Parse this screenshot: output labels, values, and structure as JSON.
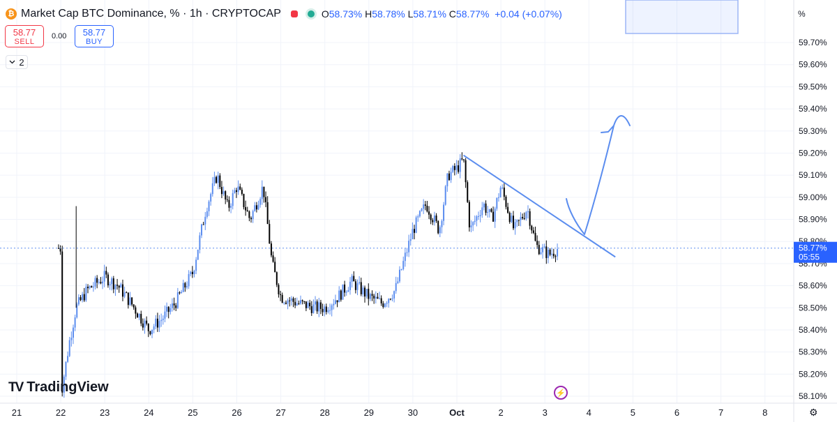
{
  "header": {
    "coin_icon": "bitcoin-icon",
    "symbol_title": "Market Cap BTC Dominance, % · 1h · CRYPTOCAP",
    "ohlc": {
      "o_label": "O",
      "o_value": "58.73%",
      "h_label": "H",
      "h_value": "58.78%",
      "l_label": "L",
      "l_value": "58.71%",
      "c_label": "C",
      "c_value": "58.77%",
      "change": "+0.04 (+0.07%)"
    }
  },
  "trade": {
    "sell_price": "58.77",
    "sell_label": "SELL",
    "spread": "0.00",
    "buy_price": "58.77",
    "buy_label": "BUY"
  },
  "indicators_toggle": {
    "count": "2",
    "icon": "chevron-down-icon"
  },
  "price_axis": {
    "unit": "%"
  },
  "last_price": {
    "value": "58.77%",
    "countdown": "05:55"
  },
  "branding": {
    "logo": "TradingView"
  },
  "colors": {
    "up": "#5b8def",
    "down": "#000000",
    "accent": "#2962ff",
    "sell": "#f23645",
    "drawing": "#5b8def"
  },
  "chart_data": {
    "type": "candlestick",
    "title": "Market Cap BTC Dominance, % · 1h · CRYPTOCAP",
    "y_unit": "%",
    "ylim": [
      58.08,
      59.8
    ],
    "y_ticks": [
      "59.70%",
      "59.60%",
      "59.50%",
      "59.40%",
      "59.30%",
      "59.20%",
      "59.10%",
      "59.00%",
      "58.90%",
      "58.80%",
      "58.70%",
      "58.60%",
      "58.50%",
      "58.40%",
      "58.30%",
      "58.20%",
      "58.10%"
    ],
    "x_ticks": [
      "21",
      "22",
      "23",
      "24",
      "25",
      "26",
      "27",
      "28",
      "29",
      "30",
      "Oct",
      "2",
      "3",
      "4",
      "5",
      "6",
      "7",
      "8"
    ],
    "grid": true,
    "last_close": 58.77,
    "price_path_day_close": [
      [
        22.0,
        58.1
      ],
      [
        22.2,
        58.35
      ],
      [
        22.35,
        58.5
      ],
      [
        22.6,
        58.58
      ],
      [
        23.0,
        58.64
      ],
      [
        23.3,
        58.6
      ],
      [
        23.6,
        58.52
      ],
      [
        24.0,
        58.4
      ],
      [
        24.3,
        58.45
      ],
      [
        24.6,
        58.52
      ],
      [
        25.0,
        58.66
      ],
      [
        25.3,
        58.95
      ],
      [
        25.55,
        59.1
      ],
      [
        25.8,
        58.95
      ],
      [
        26.0,
        59.05
      ],
      [
        26.3,
        58.9
      ],
      [
        26.6,
        59.05
      ],
      [
        26.8,
        58.7
      ],
      [
        27.0,
        58.55
      ],
      [
        27.4,
        58.52
      ],
      [
        27.8,
        58.5
      ],
      [
        28.0,
        58.5
      ],
      [
        28.3,
        58.55
      ],
      [
        28.6,
        58.62
      ],
      [
        29.0,
        58.55
      ],
      [
        29.3,
        58.52
      ],
      [
        29.6,
        58.58
      ],
      [
        30.0,
        58.85
      ],
      [
        30.3,
        58.97
      ],
      [
        30.6,
        58.85
      ],
      [
        30.8,
        59.1
      ],
      [
        31.0,
        59.13
      ],
      [
        31.15,
        59.17
      ],
      [
        31.3,
        58.85
      ],
      [
        31.6,
        58.97
      ],
      [
        31.8,
        58.9
      ],
      [
        32.0,
        59.05
      ],
      [
        32.3,
        58.85
      ],
      [
        32.6,
        58.95
      ],
      [
        32.8,
        58.78
      ],
      [
        33.1,
        58.74
      ],
      [
        33.3,
        58.77
      ]
    ],
    "annotations": [
      {
        "type": "trendline",
        "from": {
          "x": 31.15,
          "y": 59.19
        },
        "to": {
          "x": 34.6,
          "y": 58.73
        }
      },
      {
        "type": "freehand-arrow",
        "direction": "up"
      },
      {
        "type": "rectangle",
        "position": "top",
        "style": "light-blue"
      }
    ]
  }
}
